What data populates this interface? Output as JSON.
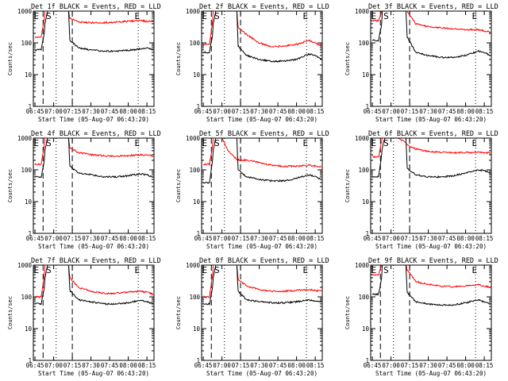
{
  "chart_data": {
    "type": "line",
    "shared_xlabel": "Start Time (05-Aug-07 06:43:20)",
    "shared_ylabel": "Counts/sec",
    "x_ticks": [
      "06:45",
      "07:00",
      "07:15",
      "07:30",
      "07:45",
      "08:00",
      "08:15"
    ],
    "y_ticks": [
      "1",
      "10",
      "100",
      "1000"
    ],
    "y_scale": "log",
    "ylim": [
      1,
      1000
    ],
    "xlim_minutes": [
      -1.33,
      95.67
    ],
    "region_markers": [
      "E",
      "S",
      "E"
    ],
    "colors": {
      "events": "#000000",
      "lld": "#ff0000"
    },
    "series_names": [
      "Events",
      "LLD"
    ],
    "panels": [
      {
        "title": "Det 1f BLACK = Events, RED = LLD",
        "minutes": [
          0,
          5,
          7.5,
          8,
          10,
          15,
          20,
          25,
          27,
          28,
          35,
          45,
          55,
          65,
          75,
          85,
          90,
          95
        ],
        "events": [
          60,
          60,
          200,
          400,
          1000,
          1000,
          1000,
          1000,
          1000,
          120,
          70,
          60,
          55,
          55,
          58,
          65,
          70,
          60
        ],
        "lld": [
          150,
          150,
          600,
          1000,
          1000,
          1000,
          1000,
          1000,
          1000,
          600,
          450,
          430,
          430,
          450,
          480,
          500,
          480,
          470
        ]
      },
      {
        "title": "Det 2f BLACK = Events, RED = LLD",
        "minutes": [
          0,
          5,
          7.5,
          8,
          10,
          15,
          20,
          25,
          27,
          28,
          35,
          45,
          55,
          65,
          75,
          85,
          90,
          95
        ],
        "events": [
          50,
          50,
          180,
          400,
          1000,
          1000,
          1000,
          1000,
          1000,
          80,
          40,
          30,
          26,
          27,
          30,
          45,
          40,
          30
        ],
        "lld": [
          90,
          90,
          500,
          1000,
          1000,
          1000,
          1000,
          1000,
          1000,
          300,
          180,
          100,
          75,
          80,
          90,
          120,
          100,
          80
        ]
      },
      {
        "title": "Det 3f BLACK = Events, RED = LLD",
        "minutes": [
          0,
          5,
          7.5,
          8,
          10,
          15,
          20,
          25,
          27,
          28,
          35,
          45,
          55,
          65,
          75,
          85,
          90,
          95
        ],
        "events": [
          120,
          120,
          400,
          1000,
          1000,
          1000,
          1000,
          1000,
          1000,
          150,
          50,
          40,
          35,
          35,
          40,
          55,
          50,
          40
        ],
        "lld": [
          500,
          500,
          1000,
          1000,
          1000,
          1000,
          1000,
          1000,
          1000,
          1000,
          400,
          320,
          300,
          280,
          260,
          260,
          240,
          220
        ]
      },
      {
        "title": "Det 4f BLACK = Events, RED = LLD",
        "minutes": [
          0,
          5,
          7.5,
          8,
          10,
          15,
          20,
          25,
          27,
          28,
          35,
          45,
          55,
          65,
          75,
          85,
          90,
          95
        ],
        "events": [
          60,
          60,
          200,
          400,
          1000,
          1000,
          1000,
          1000,
          1000,
          130,
          80,
          70,
          60,
          60,
          65,
          75,
          70,
          60
        ],
        "lld": [
          150,
          150,
          600,
          1000,
          1000,
          1000,
          1000,
          1000,
          1000,
          500,
          350,
          300,
          280,
          270,
          280,
          300,
          290,
          270
        ]
      },
      {
        "title": "Det 5f BLACK = Events, RED = LLD",
        "minutes": [
          0,
          5,
          7.5,
          8,
          10,
          15,
          20,
          25,
          27,
          28,
          35,
          45,
          55,
          65,
          75,
          85,
          90,
          95
        ],
        "events": [
          40,
          40,
          200,
          400,
          1000,
          1000,
          1000,
          1000,
          1000,
          100,
          60,
          50,
          45,
          45,
          55,
          70,
          60,
          50
        ],
        "lld": [
          150,
          150,
          600,
          1000,
          1000,
          1000,
          400,
          250,
          220,
          210,
          200,
          170,
          140,
          130,
          130,
          140,
          130,
          125
        ]
      },
      {
        "title": "Det 6f BLACK = Events, RED = LLD",
        "minutes": [
          0,
          5,
          7.5,
          8,
          10,
          15,
          20,
          25,
          27,
          28,
          35,
          45,
          55,
          65,
          75,
          85,
          90,
          95
        ],
        "events": [
          60,
          60,
          300,
          500,
          1000,
          1000,
          1000,
          1000,
          1000,
          110,
          70,
          60,
          60,
          65,
          80,
          100,
          95,
          80
        ],
        "lld": [
          260,
          260,
          800,
          1000,
          1000,
          1000,
          1000,
          800,
          700,
          600,
          450,
          380,
          360,
          350,
          350,
          360,
          350,
          340
        ]
      },
      {
        "title": "Det 7f BLACK = Events, RED = LLD",
        "minutes": [
          0,
          5,
          7.5,
          8,
          10,
          15,
          20,
          25,
          27,
          28,
          35,
          45,
          55,
          65,
          75,
          85,
          90,
          95
        ],
        "events": [
          60,
          60,
          200,
          400,
          1000,
          1000,
          1000,
          1000,
          1000,
          160,
          80,
          70,
          60,
          60,
          65,
          80,
          70,
          60
        ],
        "lld": [
          100,
          100,
          500,
          1000,
          1000,
          1000,
          1000,
          1000,
          1000,
          400,
          200,
          150,
          130,
          130,
          140,
          150,
          140,
          120
        ]
      },
      {
        "title": "Det 8f BLACK = Events, RED = LLD",
        "minutes": [
          0,
          5,
          7.5,
          8,
          10,
          15,
          20,
          25,
          27,
          28,
          35,
          45,
          55,
          65,
          75,
          85,
          90,
          95
        ],
        "events": [
          60,
          60,
          200,
          400,
          1000,
          1000,
          1000,
          1000,
          1000,
          150,
          80,
          70,
          65,
          65,
          70,
          80,
          75,
          70
        ],
        "lld": [
          100,
          100,
          500,
          1000,
          1000,
          1000,
          1000,
          1000,
          1000,
          350,
          220,
          170,
          150,
          150,
          160,
          170,
          160,
          150
        ]
      },
      {
        "title": "Det 9f BLACK = Events, RED = LLD",
        "minutes": [
          0,
          5,
          7.5,
          8,
          10,
          15,
          20,
          25,
          27,
          28,
          35,
          45,
          55,
          65,
          75,
          85,
          90,
          95
        ],
        "events": [
          120,
          120,
          400,
          1000,
          1000,
          1000,
          1000,
          1000,
          1000,
          140,
          70,
          60,
          55,
          55,
          65,
          80,
          70,
          60
        ],
        "lld": [
          500,
          500,
          1000,
          1000,
          1000,
          1000,
          1000,
          1000,
          1000,
          700,
          300,
          250,
          220,
          210,
          220,
          240,
          220,
          200
        ]
      }
    ]
  }
}
